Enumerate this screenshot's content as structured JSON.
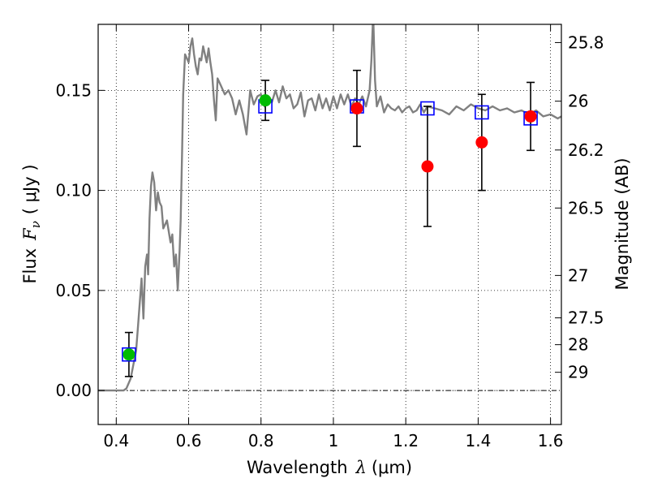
{
  "chart_data": {
    "type": "scatter",
    "xlabel": "Wavelength",
    "xlabel_symbol": "λ",
    "xlabel_unit": "(μm)",
    "ylabel": "Flux",
    "ylabel_symbol": "F",
    "ylabel_subscript": "ν",
    "ylabel_unit": "( μJy )",
    "y2label": "Magnitude (AB)",
    "xlim": [
      0.35,
      1.63
    ],
    "ylim": [
      -0.017,
      0.183
    ],
    "grid": true,
    "grid_style": "dotted",
    "zero_line": true,
    "x_ticks": [
      0.4,
      0.6,
      0.8,
      1.0,
      1.2,
      1.4,
      1.6
    ],
    "x_tick_labels": [
      "0.4",
      "0.6",
      "0.8",
      "1",
      "1.2",
      "1.4",
      "1.6"
    ],
    "y_ticks": [
      0.0,
      0.05,
      0.1,
      0.15
    ],
    "y_tick_labels": [
      "0.00",
      "0.05",
      "0.10",
      "0.15"
    ],
    "magnitude_ticks": [
      {
        "label": "25.8",
        "flux": 0.1739
      },
      {
        "label": "26",
        "flux": 0.1446
      },
      {
        "label": "26.2",
        "flux": 0.1202
      },
      {
        "label": "26.5",
        "flux": 0.0912
      },
      {
        "label": "27",
        "flux": 0.0575
      },
      {
        "label": "27.5",
        "flux": 0.0363
      },
      {
        "label": "28",
        "flux": 0.0229
      },
      {
        "label": "29",
        "flux": 0.0091
      }
    ],
    "series": [
      {
        "style": "gray-line",
        "color": "#808080",
        "x": [
          0.35,
          0.42,
          0.428,
          0.44,
          0.455,
          0.46,
          0.465,
          0.47,
          0.475,
          0.48,
          0.485,
          0.488,
          0.492,
          0.496,
          0.5,
          0.505,
          0.51,
          0.515,
          0.52,
          0.525,
          0.53,
          0.54,
          0.55,
          0.555,
          0.56,
          0.565,
          0.57,
          0.575,
          0.578,
          0.582,
          0.585,
          0.59,
          0.6,
          0.605,
          0.61,
          0.615,
          0.62,
          0.625,
          0.63,
          0.635,
          0.64,
          0.645,
          0.65,
          0.655,
          0.66,
          0.665,
          0.67,
          0.675,
          0.68,
          0.69,
          0.7,
          0.71,
          0.72,
          0.73,
          0.74,
          0.75,
          0.76,
          0.77,
          0.78,
          0.79,
          0.8,
          0.81,
          0.82,
          0.83,
          0.84,
          0.85,
          0.86,
          0.87,
          0.88,
          0.89,
          0.9,
          0.91,
          0.92,
          0.93,
          0.94,
          0.95,
          0.96,
          0.97,
          0.98,
          0.99,
          1.0,
          1.01,
          1.02,
          1.03,
          1.04,
          1.05,
          1.06,
          1.07,
          1.08,
          1.09,
          1.1,
          1.105,
          1.11,
          1.115,
          1.12,
          1.13,
          1.14,
          1.15,
          1.16,
          1.17,
          1.18,
          1.19,
          1.2,
          1.21,
          1.22,
          1.23,
          1.24,
          1.25,
          1.26,
          1.28,
          1.3,
          1.32,
          1.34,
          1.36,
          1.38,
          1.4,
          1.42,
          1.44,
          1.46,
          1.48,
          1.5,
          1.52,
          1.54,
          1.56,
          1.58,
          1.6,
          1.62,
          1.63
        ],
        "y": [
          0.0,
          0.0,
          0.001,
          0.006,
          0.02,
          0.032,
          0.044,
          0.056,
          0.036,
          0.062,
          0.068,
          0.058,
          0.086,
          0.102,
          0.109,
          0.104,
          0.09,
          0.099,
          0.094,
          0.092,
          0.081,
          0.085,
          0.074,
          0.078,
          0.062,
          0.068,
          0.05,
          0.07,
          0.085,
          0.12,
          0.148,
          0.168,
          0.164,
          0.172,
          0.176,
          0.168,
          0.162,
          0.158,
          0.166,
          0.165,
          0.172,
          0.168,
          0.164,
          0.171,
          0.164,
          0.158,
          0.145,
          0.135,
          0.156,
          0.152,
          0.148,
          0.15,
          0.146,
          0.138,
          0.145,
          0.138,
          0.128,
          0.15,
          0.143,
          0.147,
          0.148,
          0.142,
          0.146,
          0.144,
          0.15,
          0.144,
          0.152,
          0.146,
          0.148,
          0.141,
          0.143,
          0.149,
          0.137,
          0.145,
          0.146,
          0.14,
          0.148,
          0.141,
          0.146,
          0.14,
          0.147,
          0.141,
          0.148,
          0.143,
          0.148,
          0.142,
          0.146,
          0.143,
          0.147,
          0.142,
          0.15,
          0.165,
          0.188,
          0.155,
          0.142,
          0.147,
          0.139,
          0.143,
          0.141,
          0.14,
          0.142,
          0.139,
          0.141,
          0.142,
          0.139,
          0.14,
          0.143,
          0.139,
          0.142,
          0.141,
          0.14,
          0.138,
          0.142,
          0.14,
          0.143,
          0.141,
          0.14,
          0.142,
          0.14,
          0.141,
          0.139,
          0.14,
          0.138,
          0.14,
          0.137,
          0.138,
          0.136,
          0.137
        ]
      },
      {
        "style": "blue-open-square",
        "color": "#0000ff",
        "x": [
          0.435,
          0.812,
          1.065,
          1.26,
          1.41,
          1.545
        ],
        "y": [
          0.018,
          0.142,
          0.142,
          0.141,
          0.139,
          0.136
        ]
      },
      {
        "style": "green-dot",
        "color": "#00bb00",
        "x": [
          0.435,
          0.812
        ],
        "y": [
          0.018,
          0.145
        ],
        "err": [
          0.011,
          0.01
        ]
      },
      {
        "style": "red-dot",
        "color": "#ff0000",
        "x": [
          1.065,
          1.26,
          1.41,
          1.545
        ],
        "y": [
          0.141,
          0.112,
          0.124,
          0.137
        ],
        "err": [
          0.019,
          0.03,
          0.024,
          0.017
        ]
      }
    ]
  }
}
